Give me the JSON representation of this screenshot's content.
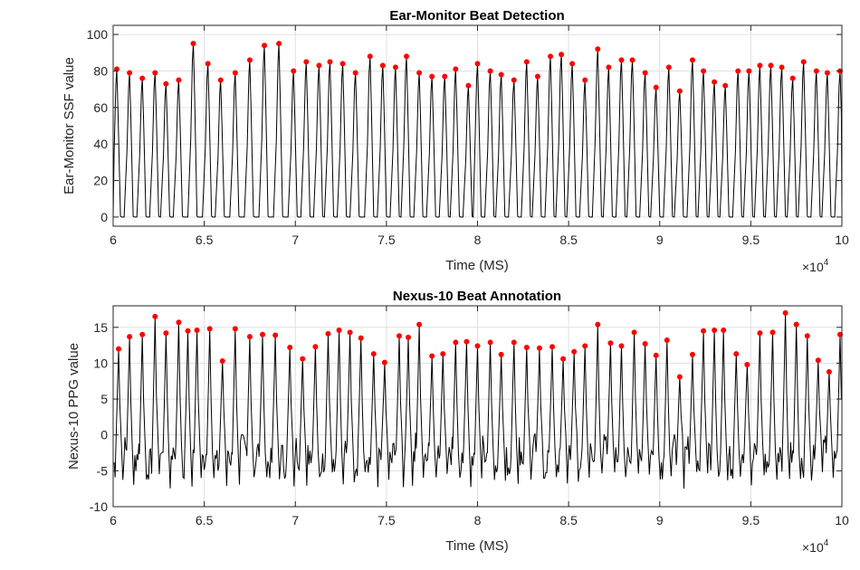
{
  "chart_data": [
    {
      "type": "line",
      "title": "Ear-Monitor Beat Detection",
      "xlabel": "Time (MS)",
      "ylabel": "Ear-Monitor SSF value",
      "xlim": [
        60000,
        100000
      ],
      "ylim": [
        -5,
        105
      ],
      "x_tick_values": [
        60000,
        65000,
        70000,
        75000,
        80000,
        85000,
        90000,
        95000,
        100000
      ],
      "x_tick_labels": [
        "6",
        "6.5",
        "7",
        "7.5",
        "8",
        "8.5",
        "9",
        "9.5",
        "10"
      ],
      "x_exponent": {
        "base": "×10",
        "power": "4"
      },
      "y_ticks": [
        0,
        20,
        40,
        60,
        80,
        100
      ],
      "grid": true,
      "series": [
        {
          "kind": "signal",
          "color": "#000000",
          "description_of_trace": "SSF waveform: sharp pulse per beat, baseline 0, returning to 0 between beats"
        },
        {
          "kind": "beat-markers",
          "color": "#ff0000",
          "points": [
            [
              60200,
              81
            ],
            [
              60900,
              79
            ],
            [
              61600,
              76
            ],
            [
              62300,
              79
            ],
            [
              62900,
              73
            ],
            [
              63600,
              75
            ],
            [
              64400,
              95
            ],
            [
              65200,
              84
            ],
            [
              65900,
              75
            ],
            [
              66700,
              79
            ],
            [
              67500,
              86
            ],
            [
              68300,
              94
            ],
            [
              69100,
              95
            ],
            [
              69900,
              80
            ],
            [
              70600,
              85
            ],
            [
              71300,
              83
            ],
            [
              71900,
              85
            ],
            [
              72600,
              84
            ],
            [
              73300,
              79
            ],
            [
              74100,
              88
            ],
            [
              74800,
              83
            ],
            [
              75500,
              82
            ],
            [
              76100,
              88
            ],
            [
              76800,
              79
            ],
            [
              77500,
              77
            ],
            [
              78200,
              77
            ],
            [
              78800,
              81
            ],
            [
              79500,
              72
            ],
            [
              80000,
              84
            ],
            [
              80700,
              80
            ],
            [
              81300,
              78
            ],
            [
              82000,
              75
            ],
            [
              82700,
              85
            ],
            [
              83300,
              77
            ],
            [
              84000,
              88
            ],
            [
              84600,
              89
            ],
            [
              85200,
              84
            ],
            [
              85900,
              75
            ],
            [
              86600,
              92
            ],
            [
              87200,
              82
            ],
            [
              87900,
              86
            ],
            [
              88500,
              86
            ],
            [
              89200,
              79
            ],
            [
              89800,
              71
            ],
            [
              90500,
              82
            ],
            [
              91100,
              69
            ],
            [
              91800,
              86
            ],
            [
              92400,
              80
            ],
            [
              93000,
              74
            ],
            [
              93600,
              72
            ],
            [
              94300,
              80
            ],
            [
              94900,
              80
            ],
            [
              95500,
              83
            ],
            [
              96100,
              83
            ],
            [
              96700,
              82
            ],
            [
              97300,
              76
            ],
            [
              97900,
              85
            ],
            [
              98600,
              80
            ],
            [
              99200,
              79
            ],
            [
              99900,
              80
            ]
          ]
        }
      ]
    },
    {
      "type": "line",
      "title": "Nexus-10 Beat Annotation",
      "xlabel": "Time (MS)",
      "ylabel": "Nexus-10 PPG value",
      "xlim": [
        60000,
        100000
      ],
      "ylim": [
        -10,
        18
      ],
      "x_tick_values": [
        60000,
        65000,
        70000,
        75000,
        80000,
        85000,
        90000,
        95000,
        100000
      ],
      "x_tick_labels": [
        "6",
        "6.5",
        "7",
        "7.5",
        "8",
        "8.5",
        "9",
        "9.5",
        "10"
      ],
      "x_exponent": {
        "base": "×10",
        "power": "4"
      },
      "y_ticks": [
        -10,
        -5,
        0,
        5,
        10,
        15
      ],
      "grid": true,
      "series": [
        {
          "kind": "signal",
          "color": "#000000",
          "description_of_trace": "PPG waveform: noisy baseline around -3 with a sharp peak per beat"
        },
        {
          "kind": "beat-markers",
          "color": "#ff0000",
          "points": [
            [
              60300,
              12
            ],
            [
              60900,
              13.7
            ],
            [
              61600,
              14
            ],
            [
              62300,
              16.5
            ],
            [
              62900,
              14.2
            ],
            [
              63600,
              15.7
            ],
            [
              64100,
              14.5
            ],
            [
              64600,
              14.6
            ],
            [
              65300,
              14.8
            ],
            [
              66000,
              10.3
            ],
            [
              66700,
              14.8
            ],
            [
              67500,
              13.7
            ],
            [
              68200,
              14
            ],
            [
              68900,
              13.9
            ],
            [
              69700,
              12.2
            ],
            [
              70400,
              10.6
            ],
            [
              71100,
              12.3
            ],
            [
              71800,
              14.1
            ],
            [
              72400,
              14.6
            ],
            [
              73000,
              14.3
            ],
            [
              73600,
              13.5
            ],
            [
              74300,
              11.3
            ],
            [
              74900,
              10.1
            ],
            [
              75700,
              13.8
            ],
            [
              76200,
              13.6
            ],
            [
              76800,
              15.4
            ],
            [
              77500,
              11
            ],
            [
              78100,
              11.3
            ],
            [
              78800,
              12.9
            ],
            [
              79400,
              13
            ],
            [
              80000,
              12.4
            ],
            [
              80700,
              12.9
            ],
            [
              81300,
              11.2
            ],
            [
              82000,
              12.9
            ],
            [
              82700,
              12.2
            ],
            [
              83400,
              12.1
            ],
            [
              84100,
              12.3
            ],
            [
              84700,
              10.6
            ],
            [
              85300,
              11.6
            ],
            [
              85900,
              12.4
            ],
            [
              86600,
              15.4
            ],
            [
              87300,
              12.8
            ],
            [
              87900,
              12.4
            ],
            [
              88600,
              14.3
            ],
            [
              89200,
              12.7
            ],
            [
              89800,
              11.1
            ],
            [
              90400,
              13.2
            ],
            [
              91100,
              8.1
            ],
            [
              91800,
              11.2
            ],
            [
              92400,
              14.5
            ],
            [
              93000,
              14.6
            ],
            [
              93500,
              14.6
            ],
            [
              94200,
              11.3
            ],
            [
              94800,
              9.8
            ],
            [
              95500,
              14.2
            ],
            [
              96200,
              14.3
            ],
            [
              96900,
              17
            ],
            [
              97500,
              15.4
            ],
            [
              98100,
              13.8
            ],
            [
              98700,
              10.4
            ],
            [
              99300,
              8.8
            ],
            [
              99900,
              14
            ]
          ]
        }
      ]
    }
  ]
}
